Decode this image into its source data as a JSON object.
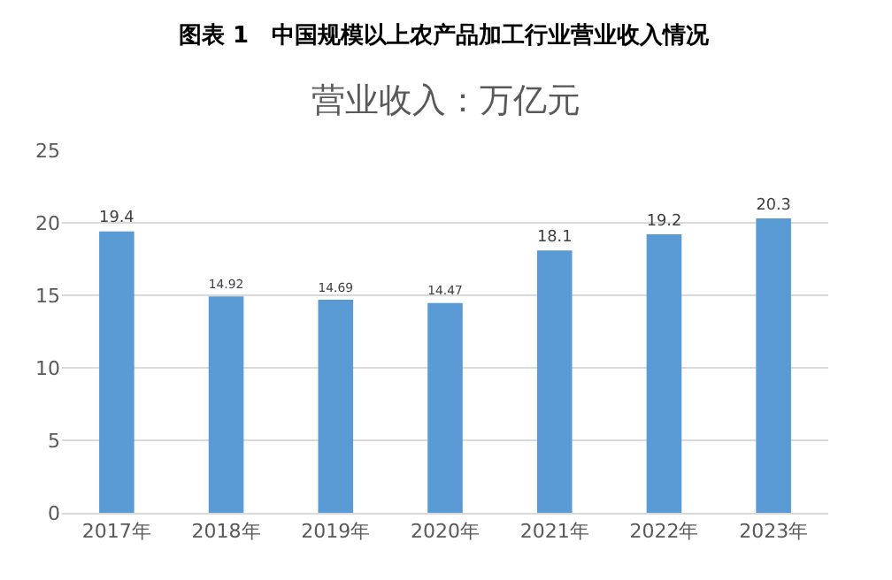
{
  "chart_data": {
    "type": "bar",
    "title": "图表 1　中国规模以上农产品加工行业营业收入情况",
    "subtitle": "营业收入：万亿元",
    "categories": [
      "2017年",
      "2018年",
      "2019年",
      "2020年",
      "2021年",
      "2022年",
      "2023年"
    ],
    "values": [
      19.4,
      14.92,
      14.69,
      14.47,
      18.1,
      19.2,
      20.3
    ],
    "color": "#5b9bd5",
    "ylim": [
      0,
      25
    ],
    "yticks": [
      0,
      5,
      10,
      15,
      20,
      25
    ],
    "grid": "y",
    "data_labels": true
  }
}
